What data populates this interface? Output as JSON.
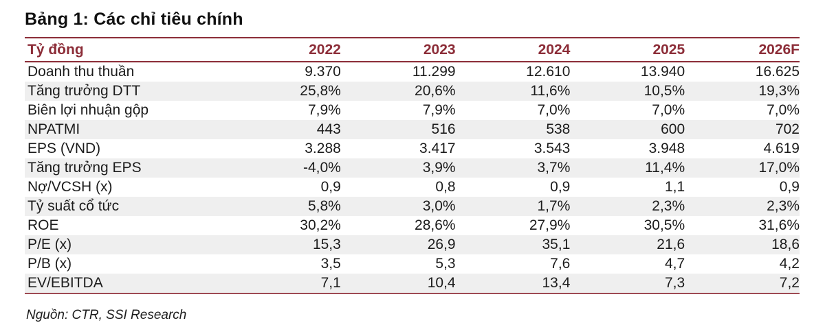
{
  "title": "Bảng 1: Các chỉ tiêu chính",
  "colors": {
    "accent_maroon": "#8C2D38",
    "row_alt_gray": "#EFEFEF",
    "text": "#1c1c1c"
  },
  "table": {
    "header": [
      "Tỷ đồng",
      "2022",
      "2023",
      "2024",
      "2025",
      "2026F"
    ],
    "rows": [
      {
        "label": "Doanh thu thuần",
        "values": [
          "9.370",
          "11.299",
          "12.610",
          "13.940",
          "16.625"
        ]
      },
      {
        "label": "Tăng trưởng DTT",
        "values": [
          "25,8%",
          "20,6%",
          "11,6%",
          "10,5%",
          "19,3%"
        ]
      },
      {
        "label": "Biên lợi nhuận gộp",
        "values": [
          "7,9%",
          "7,9%",
          "7,0%",
          "7,0%",
          "7,0%"
        ]
      },
      {
        "label": "NPATMI",
        "values": [
          "443",
          "516",
          "538",
          "600",
          "702"
        ]
      },
      {
        "label": "EPS (VND)",
        "values": [
          "3.288",
          "3.417",
          "3.543",
          "3.948",
          "4.619"
        ]
      },
      {
        "label": "Tăng trưởng EPS",
        "values": [
          "-4,0%",
          "3,9%",
          "3,7%",
          "11,4%",
          "17,0%"
        ]
      },
      {
        "label": "Nợ/VCSH (x)",
        "values": [
          "0,9",
          "0,8",
          "0,9",
          "1,1",
          "0,9"
        ]
      },
      {
        "label": "Tỷ suất cổ tức",
        "values": [
          "5,8%",
          "3,0%",
          "1,7%",
          "2,3%",
          "2,3%"
        ]
      },
      {
        "label": "ROE",
        "values": [
          "30,2%",
          "28,6%",
          "27,9%",
          "30,5%",
          "31,6%"
        ]
      },
      {
        "label": "P/E (x)",
        "values": [
          "15,3",
          "26,9",
          "35,1",
          "21,6",
          "18,6"
        ]
      },
      {
        "label": "P/B (x)",
        "values": [
          "3,5",
          "5,3",
          "7,6",
          "4,7",
          "4,2"
        ]
      },
      {
        "label": "EV/EBITDA",
        "values": [
          "7,1",
          "10,4",
          "13,4",
          "7,3",
          "7,2"
        ]
      }
    ]
  },
  "footer": {
    "source": "Nguồn: CTR, SSI Research"
  }
}
